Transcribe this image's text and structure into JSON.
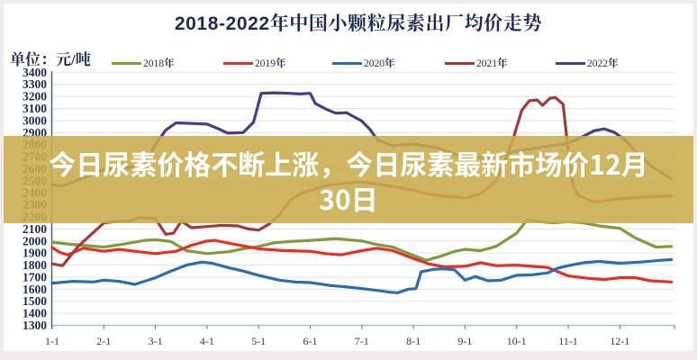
{
  "page": {
    "edge_color": "#EDECEA",
    "card_color": "#FFFFFF"
  },
  "header": {
    "title": "2018-2022年中国小颗粒尿素出厂均价走势",
    "unit_label": "单位：元/吨"
  },
  "overlay": {
    "line1": "今日尿素价格不断上涨，今日尿素最新市场价12月",
    "line2": "30日",
    "band_color": "rgba(200,172,77,0.88)",
    "text_color": "#FFFFFF"
  },
  "chart_data": {
    "type": "line",
    "title": "2018-2022年中国小颗粒尿素出厂均价走势",
    "ylabel": "元/吨",
    "ylim": [
      1300,
      3400
    ],
    "ytick_step": 100,
    "x_ticks": [
      "1-1",
      "2-1",
      "3-1",
      "4-1",
      "5-1",
      "6-1",
      "7-1",
      "8-1",
      "9-1",
      "10-1",
      "11-1",
      "12-1"
    ],
    "grid": true,
    "legend_position": "top",
    "axis_color": "#55687F",
    "baseline_color": "#A3C0D4",
    "grid_color": "#DCE4EB",
    "label_color": "#1C2B4B",
    "series": [
      {
        "name": "2018年",
        "color": "#7E9C3C",
        "points": [
          [
            1,
            1990
          ],
          [
            1.3,
            1975
          ],
          [
            1.7,
            1960
          ],
          [
            2,
            1950
          ],
          [
            2.4,
            1975
          ],
          [
            2.8,
            2005
          ],
          [
            3,
            2010
          ],
          [
            3.3,
            1995
          ],
          [
            3.6,
            1920
          ],
          [
            4,
            1895
          ],
          [
            4.4,
            1910
          ],
          [
            4.7,
            1935
          ],
          [
            5,
            1955
          ],
          [
            5.3,
            1985
          ],
          [
            5.6,
            1995
          ],
          [
            6,
            2005
          ],
          [
            6.5,
            2020
          ],
          [
            7,
            2000
          ],
          [
            7.3,
            1970
          ],
          [
            7.6,
            1950
          ],
          [
            8,
            1880
          ],
          [
            8.25,
            1840
          ],
          [
            8.5,
            1870
          ],
          [
            8.8,
            1915
          ],
          [
            9,
            1930
          ],
          [
            9.3,
            1920
          ],
          [
            9.6,
            1955
          ],
          [
            10,
            2065
          ],
          [
            10.2,
            2175
          ],
          [
            10.45,
            2160
          ],
          [
            10.7,
            2150
          ],
          [
            11,
            2160
          ],
          [
            11.3,
            2150
          ],
          [
            11.6,
            2125
          ],
          [
            12,
            2105
          ],
          [
            12.3,
            2025
          ],
          [
            12.7,
            1950
          ],
          [
            13,
            1955
          ]
        ]
      },
      {
        "name": "2019年",
        "color": "#E23228",
        "points": [
          [
            1,
            1945
          ],
          [
            1.15,
            1905
          ],
          [
            1.3,
            1885
          ],
          [
            1.6,
            1940
          ],
          [
            2,
            1915
          ],
          [
            2.3,
            1930
          ],
          [
            2.6,
            1915
          ],
          [
            3,
            1895
          ],
          [
            3.4,
            1915
          ],
          [
            3.7,
            1965
          ],
          [
            4,
            2000
          ],
          [
            4.15,
            2005
          ],
          [
            4.5,
            1975
          ],
          [
            5,
            1935
          ],
          [
            5.5,
            1920
          ],
          [
            6,
            1915
          ],
          [
            6.3,
            1895
          ],
          [
            6.6,
            1885
          ],
          [
            7,
            1920
          ],
          [
            7.3,
            1940
          ],
          [
            7.6,
            1920
          ],
          [
            8,
            1855
          ],
          [
            8.3,
            1810
          ],
          [
            8.6,
            1785
          ],
          [
            9,
            1790
          ],
          [
            9.3,
            1820
          ],
          [
            9.6,
            1795
          ],
          [
            10,
            1800
          ],
          [
            10.3,
            1790
          ],
          [
            10.6,
            1780
          ],
          [
            11,
            1710
          ],
          [
            11.4,
            1690
          ],
          [
            11.7,
            1680
          ],
          [
            12,
            1695
          ],
          [
            12.3,
            1695
          ],
          [
            12.6,
            1670
          ],
          [
            13,
            1660
          ]
        ]
      },
      {
        "name": "2020年",
        "color": "#2D6DAD",
        "points": [
          [
            1,
            1650
          ],
          [
            1.4,
            1665
          ],
          [
            1.8,
            1660
          ],
          [
            2,
            1675
          ],
          [
            2.3,
            1665
          ],
          [
            2.6,
            1640
          ],
          [
            3,
            1695
          ],
          [
            3.3,
            1750
          ],
          [
            3.6,
            1800
          ],
          [
            3.9,
            1825
          ],
          [
            4.1,
            1815
          ],
          [
            4.4,
            1780
          ],
          [
            4.7,
            1750
          ],
          [
            5,
            1715
          ],
          [
            5.4,
            1675
          ],
          [
            5.7,
            1660
          ],
          [
            6,
            1655
          ],
          [
            6.4,
            1630
          ],
          [
            6.8,
            1615
          ],
          [
            7,
            1605
          ],
          [
            7.3,
            1590
          ],
          [
            7.55,
            1575
          ],
          [
            7.7,
            1570
          ],
          [
            7.9,
            1600
          ],
          [
            8.05,
            1605
          ],
          [
            8.15,
            1745
          ],
          [
            8.4,
            1765
          ],
          [
            8.6,
            1770
          ],
          [
            8.8,
            1760
          ],
          [
            9,
            1675
          ],
          [
            9.2,
            1705
          ],
          [
            9.45,
            1670
          ],
          [
            9.7,
            1675
          ],
          [
            10,
            1715
          ],
          [
            10.3,
            1720
          ],
          [
            10.6,
            1735
          ],
          [
            10.8,
            1775
          ],
          [
            11,
            1795
          ],
          [
            11.3,
            1820
          ],
          [
            11.6,
            1830
          ],
          [
            12,
            1815
          ],
          [
            12.4,
            1825
          ],
          [
            12.8,
            1840
          ],
          [
            13,
            1845
          ]
        ]
      },
      {
        "name": "2021年",
        "color": "#A23B38",
        "points": [
          [
            1,
            1810
          ],
          [
            1.2,
            1795
          ],
          [
            1.5,
            1955
          ],
          [
            2,
            2150
          ],
          [
            2.2,
            2160
          ],
          [
            2.5,
            2165
          ],
          [
            2.7,
            2195
          ],
          [
            3,
            2185
          ],
          [
            3.2,
            2055
          ],
          [
            3.35,
            2065
          ],
          [
            3.5,
            2165
          ],
          [
            3.7,
            2110
          ],
          [
            4,
            2120
          ],
          [
            4.3,
            2130
          ],
          [
            4.6,
            2125
          ],
          [
            4.8,
            2100
          ],
          [
            5,
            2090
          ],
          [
            5.2,
            2140
          ],
          [
            5.4,
            2215
          ],
          [
            5.6,
            2335
          ],
          [
            5.8,
            2390
          ],
          [
            6,
            2420
          ],
          [
            6.3,
            2460
          ],
          [
            6.7,
            2480
          ],
          [
            7,
            2490
          ],
          [
            7.5,
            2460
          ],
          [
            8,
            2420
          ],
          [
            8.4,
            2380
          ],
          [
            8.8,
            2365
          ],
          [
            9,
            2355
          ],
          [
            9.3,
            2390
          ],
          [
            9.6,
            2500
          ],
          [
            9.8,
            2685
          ],
          [
            9.95,
            2870
          ],
          [
            10.1,
            3085
          ],
          [
            10.25,
            3165
          ],
          [
            10.4,
            3170
          ],
          [
            10.5,
            3125
          ],
          [
            10.65,
            3185
          ],
          [
            10.75,
            3190
          ],
          [
            10.9,
            3135
          ],
          [
            11,
            2745
          ],
          [
            11.1,
            2450
          ],
          [
            11.2,
            2375
          ],
          [
            11.5,
            2325
          ],
          [
            12,
            2350
          ],
          [
            12.5,
            2365
          ],
          [
            13,
            2375
          ]
        ]
      },
      {
        "name": "2022年",
        "color": "#4A3E7E",
        "points": [
          [
            1,
            2470
          ],
          [
            1.2,
            2455
          ],
          [
            1.5,
            2505
          ],
          [
            2,
            2595
          ],
          [
            2.5,
            2610
          ],
          [
            2.8,
            2645
          ],
          [
            3,
            2800
          ],
          [
            3.2,
            2920
          ],
          [
            3.4,
            2980
          ],
          [
            3.7,
            2975
          ],
          [
            4,
            2970
          ],
          [
            4.2,
            2935
          ],
          [
            4.4,
            2895
          ],
          [
            4.7,
            2900
          ],
          [
            4.9,
            2985
          ],
          [
            5.05,
            3225
          ],
          [
            5.3,
            3230
          ],
          [
            5.6,
            3225
          ],
          [
            5.8,
            3220
          ],
          [
            6,
            3225
          ],
          [
            6.1,
            3140
          ],
          [
            6.3,
            3095
          ],
          [
            6.5,
            3060
          ],
          [
            6.7,
            3065
          ],
          [
            7,
            2995
          ],
          [
            7.15,
            2930
          ],
          [
            7.3,
            2840
          ],
          [
            7.6,
            2790
          ],
          [
            8,
            2805
          ],
          [
            8.5,
            2770
          ],
          [
            9,
            2685
          ],
          [
            9.5,
            2695
          ],
          [
            10,
            2745
          ],
          [
            10.5,
            2780
          ],
          [
            11,
            2810
          ],
          [
            11.3,
            2870
          ],
          [
            11.5,
            2915
          ],
          [
            11.7,
            2930
          ],
          [
            11.9,
            2900
          ],
          [
            12.1,
            2840
          ],
          [
            12.3,
            2745
          ],
          [
            12.6,
            2625
          ],
          [
            12.9,
            2540
          ],
          [
            13,
            2520
          ]
        ]
      }
    ]
  }
}
